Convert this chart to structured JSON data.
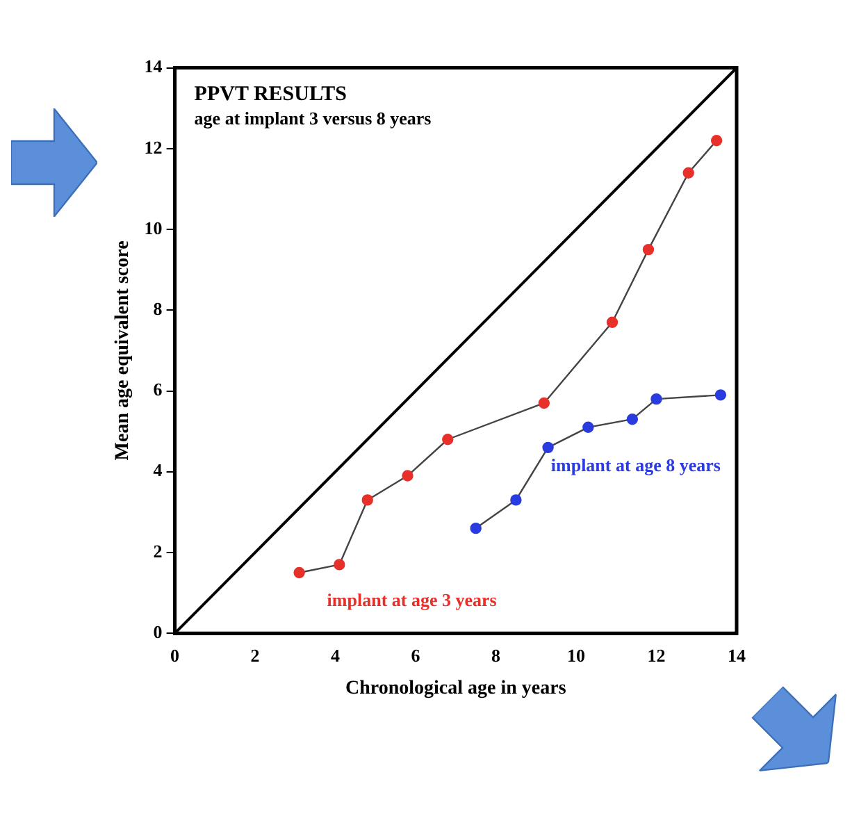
{
  "chart_data": {
    "type": "line",
    "title": "PPVT RESULTS",
    "subtitle": "age at implant 3 versus 8 years",
    "xlabel": "Chronological age in years",
    "ylabel": "Mean age equivalent score",
    "xlim": [
      0,
      14
    ],
    "ylim": [
      0,
      14
    ],
    "xticks": [
      0,
      2,
      4,
      6,
      8,
      10,
      12,
      14
    ],
    "yticks": [
      0,
      2,
      4,
      6,
      8,
      10,
      12,
      14
    ],
    "grid": false,
    "legend": false,
    "marker": "circle",
    "series": [
      {
        "name": "implant at age 3 years",
        "color": "#e8302a",
        "x": [
          3.1,
          4.1,
          4.8,
          5.8,
          6.8,
          9.2,
          10.9,
          11.8,
          12.8,
          13.5
        ],
        "values": [
          1.5,
          1.7,
          3.3,
          3.9,
          4.8,
          5.7,
          7.7,
          9.5,
          11.4,
          12.2
        ]
      },
      {
        "name": "implant at age 8 years",
        "color": "#2a3be0",
        "x": [
          7.5,
          8.5,
          9.3,
          10.3,
          11.4,
          12.0,
          13.6
        ],
        "values": [
          2.6,
          3.3,
          4.6,
          5.1,
          5.3,
          5.8,
          5.9
        ]
      },
      {
        "color": "#000000",
        "marker": "none",
        "x": [
          0,
          14
        ],
        "values": [
          0,
          14
        ]
      }
    ]
  }
}
